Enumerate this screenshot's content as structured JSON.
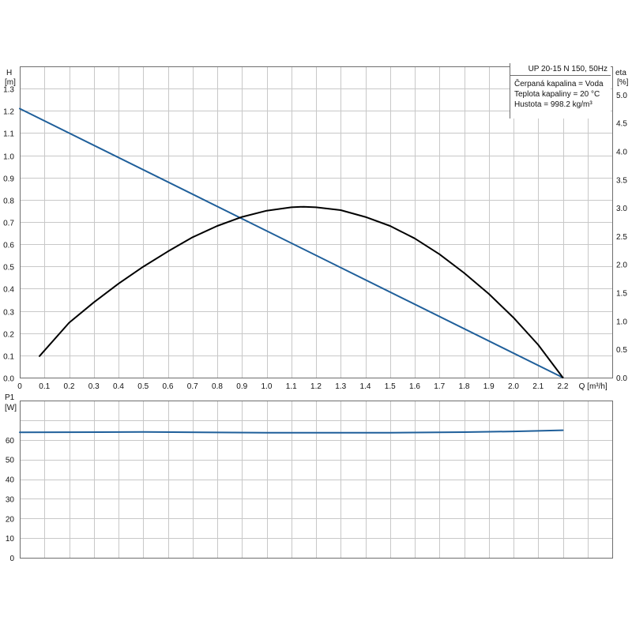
{
  "info": {
    "title": "UP 20-15 N 150, 50Hz",
    "lines": [
      "Čerpaná kapalina = Voda",
      "Teplota kapaliny = 20 °C",
      "Hustota = 998.2 kg/m³"
    ]
  },
  "colors": {
    "head_curve": "#1f5f9a",
    "eta_curve": "#000000",
    "power_curve": "#1f5f9a"
  },
  "chart_data": [
    {
      "type": "line",
      "x_label_lines": [
        "Q [m³/h]"
      ],
      "y_label_lines": [
        "H",
        "[m]"
      ],
      "y2_label_lines": [
        "eta",
        "[%]"
      ],
      "xlim": [
        0,
        2.4
      ],
      "ylim": [
        0,
        1.4
      ],
      "y2lim": [
        0,
        5.5
      ],
      "x_ticks": [
        "0",
        "0.1",
        "0.2",
        "0.3",
        "0.4",
        "0.5",
        "0.6",
        "0.7",
        "0.8",
        "0.9",
        "1.0",
        "1.1",
        "1.2",
        "1.3",
        "1.4",
        "1.5",
        "1.6",
        "1.7",
        "1.8",
        "1.9",
        "2.0",
        "2.1",
        "2.2"
      ],
      "y_ticks": [
        "0.0",
        "0.1",
        "0.2",
        "0.3",
        "0.4",
        "0.5",
        "0.6",
        "0.7",
        "0.8",
        "0.9",
        "1.0",
        "1.1",
        "1.2",
        "1.3"
      ],
      "y2_ticks": [
        "0.0",
        "0.5",
        "1.0",
        "1.5",
        "2.0",
        "2.5",
        "3.0",
        "3.5",
        "4.0",
        "4.5",
        "5.0"
      ],
      "grid": true,
      "series": [
        {
          "axis": "left",
          "color": "#1f5f9a",
          "x": [
            0.0,
            2.2
          ],
          "y": [
            1.21,
            0.0
          ]
        },
        {
          "axis": "right",
          "color": "#000000",
          "x": [
            0.08,
            0.2,
            0.3,
            0.4,
            0.5,
            0.6,
            0.7,
            0.8,
            0.9,
            1.0,
            1.1,
            1.15,
            1.2,
            1.3,
            1.4,
            1.5,
            1.6,
            1.7,
            1.8,
            1.9,
            2.0,
            2.1,
            2.2
          ],
          "y": [
            0.38,
            0.97,
            1.33,
            1.66,
            1.96,
            2.23,
            2.48,
            2.68,
            2.84,
            2.95,
            3.01,
            3.02,
            3.01,
            2.96,
            2.84,
            2.68,
            2.46,
            2.18,
            1.85,
            1.48,
            1.06,
            0.58,
            0.0
          ]
        }
      ]
    },
    {
      "type": "line",
      "y_label_lines": [
        "P1",
        "[W]"
      ],
      "xlim": [
        0,
        2.4
      ],
      "ylim": [
        0,
        80
      ],
      "y_ticks": [
        "0",
        "10",
        "20",
        "30",
        "40",
        "50",
        "60"
      ],
      "grid": true,
      "series": [
        {
          "axis": "left",
          "color": "#1f5f9a",
          "x": [
            0.0,
            0.5,
            1.0,
            1.5,
            1.8,
            2.0,
            2.2
          ],
          "y": [
            63.8,
            64.0,
            63.6,
            63.6,
            63.9,
            64.3,
            64.9
          ]
        }
      ]
    }
  ]
}
